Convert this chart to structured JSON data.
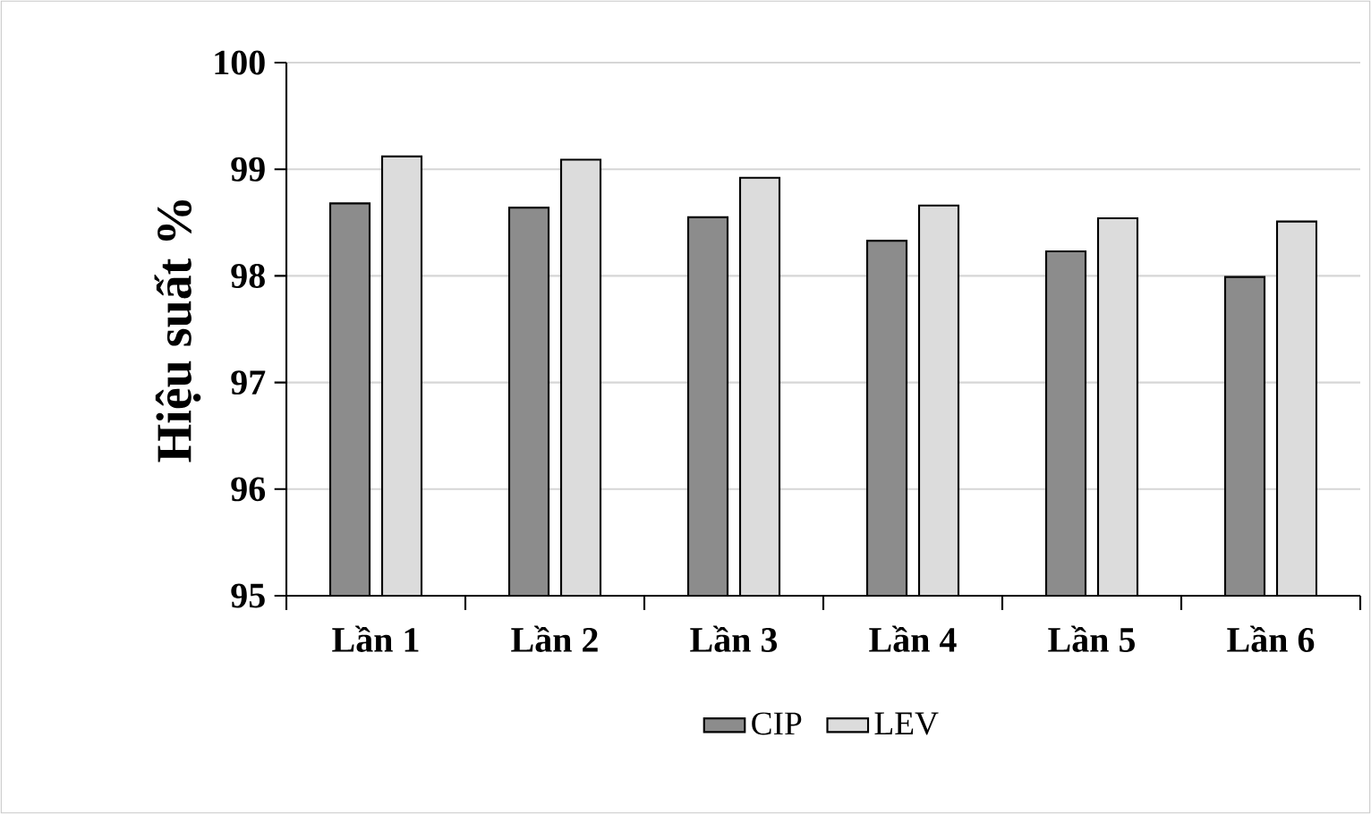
{
  "chart_data": {
    "type": "bar",
    "ylabel": "Hiệu suất %",
    "categories": [
      "Lần 1",
      "Lần 2",
      "Lần 3",
      "Lần 4",
      "Lần 5",
      "Lần 6"
    ],
    "series": [
      {
        "name": "CIP",
        "color": "#8c8c8c",
        "values": [
          98.68,
          98.64,
          98.55,
          98.33,
          98.23,
          97.99
        ]
      },
      {
        "name": "LEV",
        "color": "#dcdcdc",
        "values": [
          99.12,
          99.09,
          98.92,
          98.66,
          98.54,
          98.51
        ]
      }
    ],
    "ylim": [
      95,
      100
    ],
    "yticks": [
      95,
      96,
      97,
      98,
      99,
      100
    ],
    "grid": "y",
    "legend": "bottom"
  }
}
